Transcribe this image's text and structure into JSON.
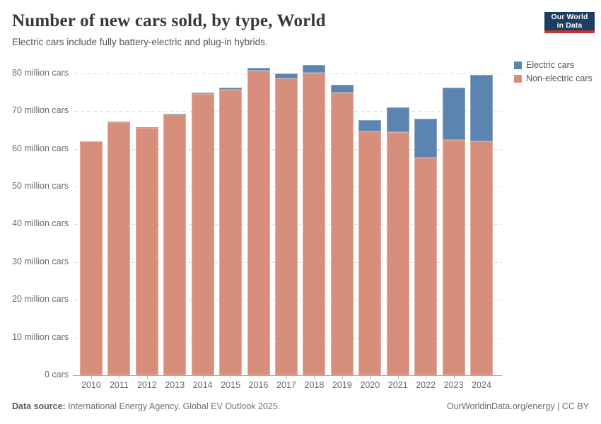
{
  "header": {
    "logo": {
      "line1": "Our World",
      "line2": "in Data",
      "bg_color": "#1d3d63",
      "accent_color": "#c5332b"
    }
  },
  "chart_data": {
    "type": "bar",
    "stacked": true,
    "title": "Number of new cars sold, by type, World",
    "subtitle": "Electric cars include fully battery-electric and plug-in hybrids.",
    "xlabel": "",
    "ylabel": "",
    "grid": true,
    "legend_position": "top-right",
    "categories": [
      "2010",
      "2011",
      "2012",
      "2013",
      "2014",
      "2015",
      "2016",
      "2017",
      "2018",
      "2019",
      "2020",
      "2021",
      "2022",
      "2023",
      "2024"
    ],
    "series": [
      {
        "name": "Electric cars",
        "color": "#5b84b1",
        "values": [
          0.01,
          0.05,
          0.13,
          0.2,
          0.32,
          0.55,
          0.76,
          1.2,
          2.0,
          2.1,
          3.0,
          6.6,
          10.3,
          13.9,
          17.5
        ]
      },
      {
        "name": "Non-electric cars",
        "color": "#d78e7b",
        "values": [
          62.0,
          67.1,
          65.5,
          69.1,
          74.5,
          75.7,
          80.7,
          78.7,
          80.2,
          74.9,
          64.5,
          64.4,
          57.7,
          62.3,
          62.0
        ]
      }
    ],
    "stack_order_bottom_to_top": [
      "Non-electric cars",
      "Electric cars"
    ],
    "ylim": [
      0,
      83.5
    ],
    "yticks": [
      {
        "v": 0,
        "label": "0 cars"
      },
      {
        "v": 10,
        "label": "10 million cars"
      },
      {
        "v": 20,
        "label": "20 million cars"
      },
      {
        "v": 30,
        "label": "30 million cars"
      },
      {
        "v": 40,
        "label": "40 million cars"
      },
      {
        "v": 50,
        "label": "50 million cars"
      },
      {
        "v": 60,
        "label": "60 million cars"
      },
      {
        "v": 70,
        "label": "70 million cars"
      },
      {
        "v": 80,
        "label": "80 million cars"
      }
    ]
  },
  "footer": {
    "source_label": "Data source:",
    "source_text": " International Energy Agency. Global EV Outlook 2025.",
    "right_text": "OurWorldinData.org/energy | CC BY"
  }
}
